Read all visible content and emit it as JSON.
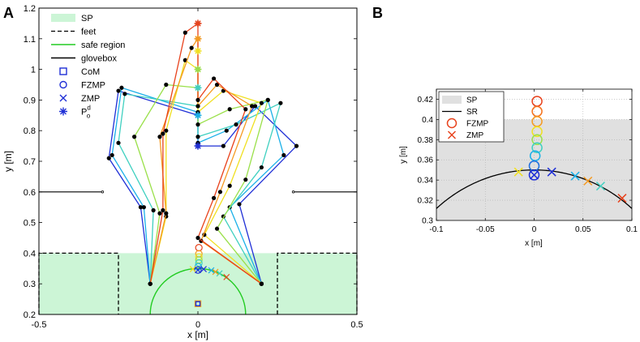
{
  "chart_data": [
    {
      "panel_label": "A",
      "type": "scatter",
      "title": "",
      "xlabel": "x [m]",
      "ylabel": "y [m]",
      "xlim": [
        -0.5,
        0.5
      ],
      "ylim": [
        0.2,
        1.2
      ],
      "grid": false,
      "legend_position": "top-left",
      "x_ticks": [
        "-0.5",
        "0",
        "0.5"
      ],
      "x_tick_values": [
        -0.5,
        0,
        0.5
      ],
      "y_ticks": [
        "0.2",
        "0.3",
        "0.4",
        "0.5",
        "0.6",
        "0.7",
        "0.8",
        "0.9",
        "1",
        "1.1",
        "1.2"
      ],
      "y_tick_values": [
        0.2,
        0.3,
        0.4,
        0.5,
        0.6,
        0.7,
        0.8,
        0.9,
        1.0,
        1.1,
        1.2
      ],
      "legend": [
        {
          "label": "SP",
          "kind": "patch",
          "color": "#ccf5d6"
        },
        {
          "label": "feet",
          "kind": "dashed-line",
          "color": "#000000"
        },
        {
          "label": "safe region",
          "kind": "line",
          "color": "#22cc22"
        },
        {
          "label": "glovebox",
          "kind": "line",
          "color": "#000000"
        },
        {
          "label": "CoM",
          "kind": "square",
          "color": "#1f2fd6"
        },
        {
          "label": "FZMP",
          "kind": "circle",
          "color": "#1f2fd6"
        },
        {
          "label": "ZMP",
          "kind": "x",
          "color": "#1f2fd6"
        },
        {
          "label": "P",
          "sup": "d",
          "sub": "o",
          "kind": "asterisk",
          "color": "#1f2fd6"
        }
      ],
      "support_polygon": {
        "x": [
          -0.5,
          0.5
        ],
        "y": [
          0.2,
          0.4
        ],
        "color": "#ccf5d6"
      },
      "feet": [
        {
          "x": [
            -0.5,
            -0.25
          ],
          "y": [
            0.2,
            0.4
          ]
        },
        {
          "x": [
            0.25,
            0.5
          ],
          "y": [
            0.2,
            0.4
          ]
        }
      ],
      "safe_region": {
        "cx": 0.0,
        "cy": 0.2,
        "r": 0.15,
        "color": "#22cc22"
      },
      "glovebox": [
        {
          "x": [
            -0.5,
            -0.3
          ],
          "y": 0.6
        },
        {
          "x": [
            0.3,
            0.5
          ],
          "y": 0.6
        }
      ],
      "poses": [
        {
          "color": "#1f2fd6",
          "joints": [
            [
              -0.15,
              0.3
            ],
            [
              -0.18,
              0.55
            ],
            [
              -0.28,
              0.71
            ],
            [
              -0.25,
              0.93
            ],
            [
              0.0,
              0.85
            ],
            [
              0.0,
              0.75
            ],
            [
              0.08,
              0.75
            ],
            [
              0.18,
              0.88
            ],
            [
              0.31,
              0.75
            ],
            [
              0.13,
              0.56
            ],
            [
              0.2,
              0.3
            ]
          ]
        },
        {
          "color": "#1ab0e8",
          "joints": [
            [
              -0.15,
              0.3
            ],
            [
              -0.17,
              0.55
            ],
            [
              -0.27,
              0.72
            ],
            [
              -0.24,
              0.94
            ],
            [
              0.0,
              0.86
            ],
            [
              0.0,
              0.76
            ],
            [
              0.09,
              0.8
            ],
            [
              0.22,
              0.9
            ],
            [
              0.27,
              0.72
            ],
            [
              0.1,
              0.55
            ],
            [
              0.2,
              0.3
            ]
          ]
        },
        {
          "color": "#3fd0c0",
          "joints": [
            [
              -0.15,
              0.3
            ],
            [
              -0.14,
              0.54
            ],
            [
              -0.25,
              0.76
            ],
            [
              -0.23,
              0.92
            ],
            [
              0.0,
              0.88
            ],
            [
              0.0,
              0.78
            ],
            [
              0.12,
              0.82
            ],
            [
              0.26,
              0.89
            ],
            [
              0.2,
              0.68
            ],
            [
              0.08,
              0.52
            ],
            [
              0.2,
              0.3
            ]
          ]
        },
        {
          "color": "#9ae04a",
          "joints": [
            [
              -0.15,
              0.3
            ],
            [
              -0.12,
              0.53
            ],
            [
              -0.2,
              0.78
            ],
            [
              -0.1,
              0.95
            ],
            [
              0.0,
              0.94
            ],
            [
              0.0,
              0.82
            ],
            [
              0.1,
              0.87
            ],
            [
              0.22,
              0.9
            ],
            [
              0.15,
              0.64
            ],
            [
              0.06,
              0.48
            ],
            [
              0.2,
              0.3
            ]
          ]
        },
        {
          "color": "#f0e020",
          "joints": [
            [
              -0.15,
              0.3
            ],
            [
              -0.1,
              0.52
            ],
            [
              -0.1,
              0.8
            ],
            [
              -0.04,
              1.03
            ],
            [
              0.0,
              1.0
            ],
            [
              0.0,
              0.86
            ],
            [
              0.08,
              0.93
            ],
            [
              0.2,
              0.89
            ],
            [
              0.1,
              0.62
            ],
            [
              0.02,
              0.46
            ],
            [
              0.2,
              0.3
            ]
          ]
        },
        {
          "color": "#f59a20",
          "joints": [
            [
              -0.15,
              0.3
            ],
            [
              -0.1,
              0.53
            ],
            [
              -0.12,
              0.78
            ],
            [
              -0.02,
              1.07
            ],
            [
              0.0,
              1.1
            ],
            [
              0.0,
              0.88
            ],
            [
              0.06,
              0.95
            ],
            [
              0.17,
              0.88
            ],
            [
              0.07,
              0.6
            ],
            [
              0.01,
              0.44
            ],
            [
              0.2,
              0.3
            ]
          ]
        },
        {
          "color": "#e8421c",
          "joints": [
            [
              -0.15,
              0.3
            ],
            [
              -0.11,
              0.54
            ],
            [
              -0.11,
              0.79
            ],
            [
              -0.04,
              1.12
            ],
            [
              0.0,
              1.15
            ],
            [
              0.0,
              0.9
            ],
            [
              0.05,
              0.97
            ],
            [
              0.15,
              0.87
            ],
            [
              0.05,
              0.58
            ],
            [
              0.0,
              0.45
            ],
            [
              0.2,
              0.3
            ]
          ]
        }
      ],
      "P_o_d": [
        {
          "x": 0.0,
          "y": 1.15,
          "color": "#e8421c"
        },
        {
          "x": 0.0,
          "y": 1.1,
          "color": "#f59a20"
        },
        {
          "x": 0.0,
          "y": 1.06,
          "color": "#f0e020"
        },
        {
          "x": 0.0,
          "y": 1.0,
          "color": "#9ae04a"
        },
        {
          "x": 0.0,
          "y": 0.94,
          "color": "#3fd0c0"
        },
        {
          "x": 0.0,
          "y": 0.85,
          "color": "#1ab0e8"
        },
        {
          "x": 0.0,
          "y": 0.75,
          "color": "#1f2fd6"
        }
      ],
      "CoM": [
        {
          "x": 0.0,
          "y": 0.235,
          "color": "#f0a020"
        },
        {
          "x": 0.0,
          "y": 0.235,
          "color": "#1f2fd6"
        }
      ],
      "FZMP": [
        {
          "x": 0.003,
          "y": 0.418,
          "color": "#e8421c"
        },
        {
          "x": 0.003,
          "y": 0.398,
          "color": "#f59a20"
        },
        {
          "x": 0.003,
          "y": 0.388,
          "color": "#f0e020"
        },
        {
          "x": 0.003,
          "y": 0.378,
          "color": "#9ae04a"
        },
        {
          "x": 0.003,
          "y": 0.368,
          "color": "#3fd0c0"
        },
        {
          "x": 0.001,
          "y": 0.356,
          "color": "#1ab0e8"
        },
        {
          "x": 0.0,
          "y": 0.345,
          "color": "#1f2fd6"
        }
      ],
      "ZMP": [
        {
          "x": 0.09,
          "y": 0.322,
          "color": "#e8421c"
        },
        {
          "x": 0.068,
          "y": 0.334,
          "color": "#3fd0c0"
        },
        {
          "x": 0.055,
          "y": 0.339,
          "color": "#f59a20"
        },
        {
          "x": 0.042,
          "y": 0.344,
          "color": "#1ab0e8"
        },
        {
          "x": 0.018,
          "y": 0.348,
          "color": "#1f2fd6"
        },
        {
          "x": -0.016,
          "y": 0.348,
          "color": "#f0e020"
        },
        {
          "x": 0.0,
          "y": 0.345,
          "color": "#1f2fd6"
        }
      ]
    },
    {
      "panel_label": "B",
      "type": "scatter",
      "title": "",
      "xlabel": "x [m]",
      "ylabel": "y [m]",
      "xlim": [
        -0.1,
        0.1
      ],
      "ylim": [
        0.3,
        0.43
      ],
      "grid": true,
      "legend_position": "top-left",
      "x_ticks": [
        "-0.1",
        "-0.05",
        "0",
        "0.05",
        "0.1"
      ],
      "x_tick_values": [
        -0.1,
        -0.05,
        0,
        0.05,
        0.1
      ],
      "y_ticks": [
        "0.3",
        "0.32",
        "0.34",
        "0.36",
        "0.38",
        "0.4",
        "0.42"
      ],
      "y_tick_values": [
        0.3,
        0.32,
        0.34,
        0.36,
        0.38,
        0.4,
        0.42
      ],
      "legend": [
        {
          "label": "SP",
          "kind": "patch",
          "color": "#e0e0e0"
        },
        {
          "label": "SR",
          "kind": "line",
          "color": "#000000"
        },
        {
          "label": "FZMP",
          "kind": "circle",
          "color": "#e8421c"
        },
        {
          "label": "ZMP",
          "kind": "x",
          "color": "#e8421c"
        }
      ],
      "support_polygon": {
        "x": [
          -0.1,
          0.1
        ],
        "y": [
          0.3,
          0.4
        ],
        "color": "#e0e0e0"
      },
      "safe_region": {
        "cx": 0.0,
        "cy": 0.2,
        "r": 0.15,
        "color": "#000000"
      },
      "FZMP": [
        {
          "x": 0.003,
          "y": 0.418,
          "color": "#e8421c"
        },
        {
          "x": 0.003,
          "y": 0.408,
          "color": "#f5721c"
        },
        {
          "x": 0.003,
          "y": 0.398,
          "color": "#f59a20"
        },
        {
          "x": 0.003,
          "y": 0.388,
          "color": "#f0e020"
        },
        {
          "x": 0.003,
          "y": 0.38,
          "color": "#9ae04a"
        },
        {
          "x": 0.003,
          "y": 0.372,
          "color": "#3fd0c0"
        },
        {
          "x": 0.001,
          "y": 0.364,
          "color": "#1ab0e8"
        },
        {
          "x": 0.0,
          "y": 0.354,
          "color": "#1f6fe0"
        },
        {
          "x": 0.0,
          "y": 0.345,
          "color": "#1f2fd6"
        }
      ],
      "ZMP": [
        {
          "x": 0.09,
          "y": 0.322,
          "color": "#e8421c"
        },
        {
          "x": 0.068,
          "y": 0.334,
          "color": "#3fd0c0"
        },
        {
          "x": 0.055,
          "y": 0.339,
          "color": "#f59a20"
        },
        {
          "x": 0.042,
          "y": 0.344,
          "color": "#1ab0e8"
        },
        {
          "x": 0.018,
          "y": 0.348,
          "color": "#1f2fd6"
        },
        {
          "x": -0.016,
          "y": 0.348,
          "color": "#f0e020"
        },
        {
          "x": 0.0,
          "y": 0.345,
          "color": "#1f2fd6"
        }
      ]
    }
  ]
}
